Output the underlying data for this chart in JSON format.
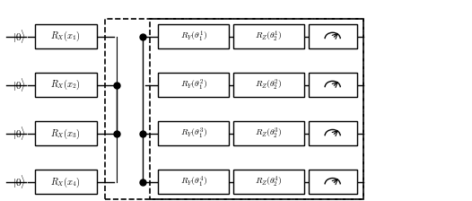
{
  "n_qubits": 4,
  "qubit_labels": [
    "|0\\rangle",
    "|0\\rangle",
    "|0\\rangle",
    "|0\\rangle"
  ],
  "rx_labels": [
    "R_X(x_1)",
    "R_X(x_2)",
    "R_X(x_3)",
    "R_X(x_4)"
  ],
  "ry_labels": [
    "R_Y(\\theta_1^1)",
    "R_Y(\\theta_1^2)",
    "R_Y(\\theta_1^3)",
    "R_Y(\\theta_1^4)"
  ],
  "rz_labels": [
    "R_Z(\\theta_2^1)",
    "R_Z(\\theta_2^2)",
    "R_Z(\\theta_2^3)",
    "R_Z(\\theta_2^4)"
  ],
  "wire_color": "black",
  "box_color": "black",
  "dot_color": "black",
  "dash_box_color": "black",
  "background": "white",
  "figsize": [
    5.26,
    2.24
  ],
  "dpi": 100
}
